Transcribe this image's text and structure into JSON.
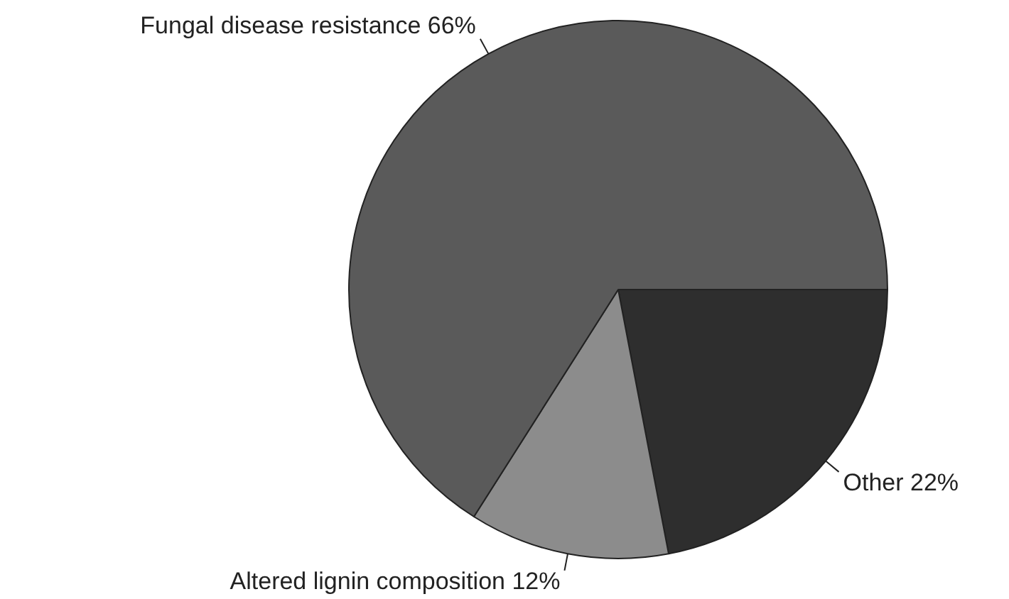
{
  "chart_data": {
    "type": "pie",
    "categories": [
      "Other",
      "Altered lignin composition",
      "Fungal disease resistance"
    ],
    "values": [
      22,
      12,
      66
    ],
    "value_labels": [
      "22%",
      "12%",
      "66%"
    ],
    "colors": [
      "#2e2e2e",
      "#8c8c8c",
      "#5a5a5a"
    ]
  }
}
